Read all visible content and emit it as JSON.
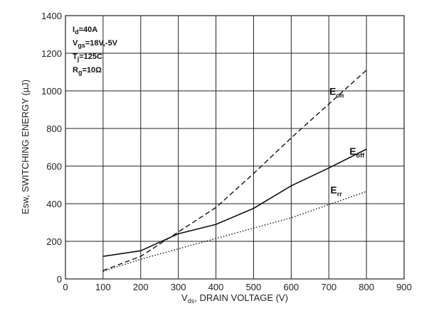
{
  "chart_data": {
    "type": "line",
    "xlabel": {
      "main": "V",
      "sub": "ds",
      "rest": ", DRAIN VOLTAGE (V)"
    },
    "ylabel": "Esw, SWITCHING ENERGY (µJ)",
    "xlim": [
      0,
      900
    ],
    "ylim": [
      0,
      1400
    ],
    "xticks": [
      "0",
      "100",
      "200",
      "300",
      "400",
      "500",
      "600",
      "700",
      "800",
      "900"
    ],
    "yticks": [
      "0",
      "200",
      "400",
      "600",
      "800",
      "1000",
      "1200",
      "1400"
    ],
    "grid": true,
    "conditions": [
      {
        "main": "I",
        "sub": "d",
        "rest": "=40A"
      },
      {
        "main": "V",
        "sub": "gs",
        "rest": "=18V,-5V"
      },
      {
        "main": "T",
        "sub": "j",
        "rest": "=125C"
      },
      {
        "main": "R",
        "sub": "g",
        "rest": "=10Ω"
      }
    ],
    "x": [
      100,
      200,
      300,
      400,
      500,
      600,
      700,
      800
    ],
    "series": [
      {
        "name": "E",
        "sub": "on",
        "style": "dashed",
        "values": [
          45,
          120,
          250,
          380,
          560,
          750,
          930,
          1110
        ]
      },
      {
        "name": "E",
        "sub": "off",
        "style": "solid",
        "values": [
          120,
          150,
          240,
          290,
          375,
          495,
          590,
          690
        ]
      },
      {
        "name": "E",
        "sub": "rr",
        "style": "dotted",
        "values": [
          40,
          105,
          160,
          215,
          270,
          325,
          395,
          465
        ]
      }
    ]
  }
}
